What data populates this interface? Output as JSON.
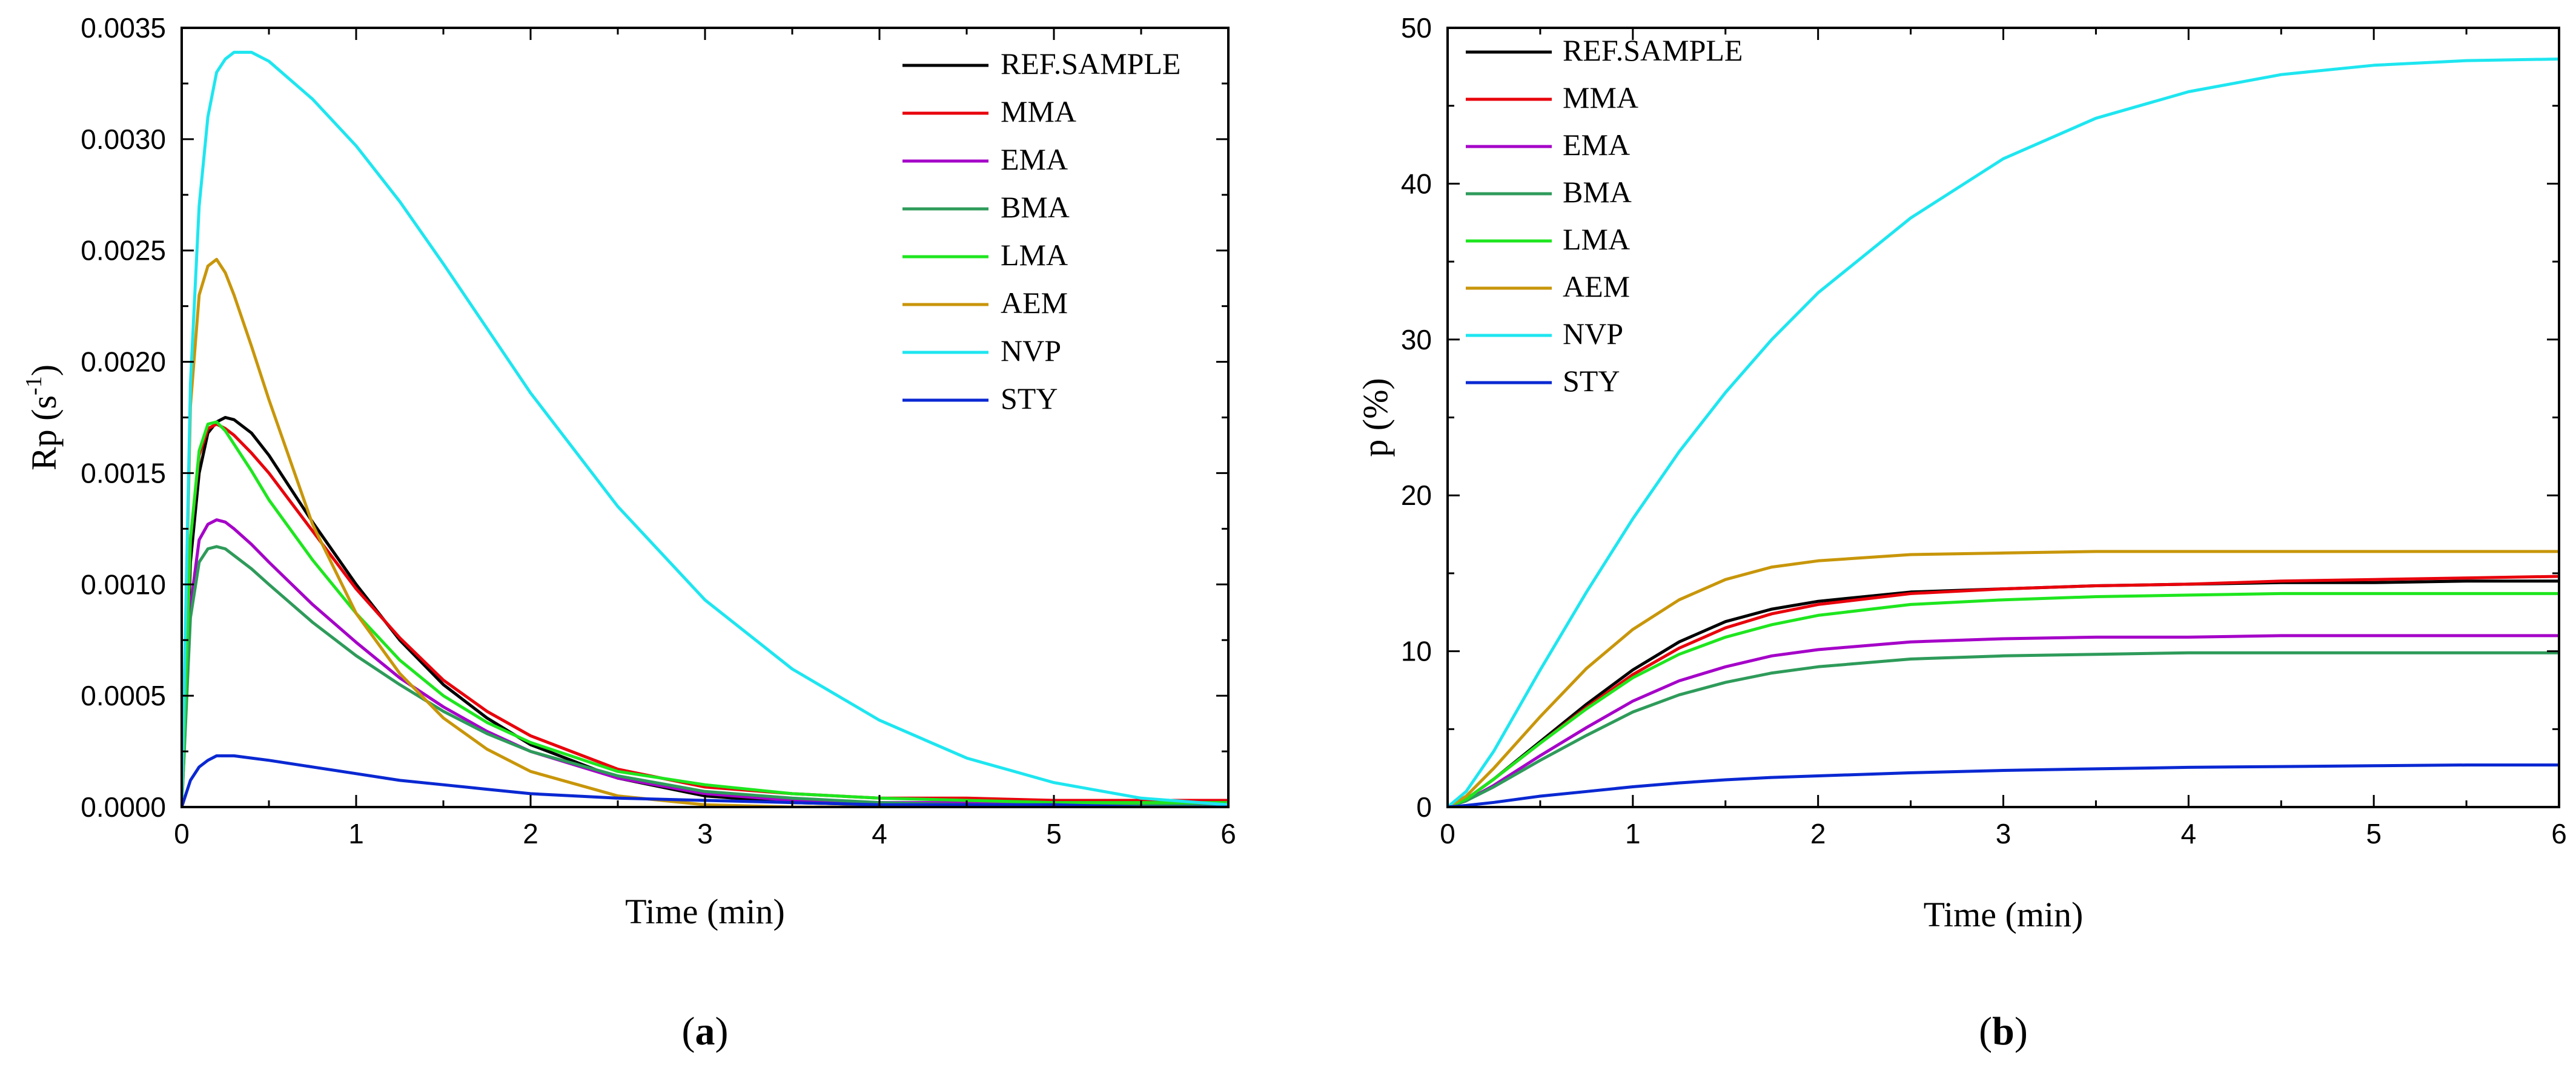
{
  "chart_data": [
    {
      "type": "line",
      "panel_label": "a",
      "xlabel": "Time (min)",
      "ylabel": {
        "base": "Rp (s",
        "sup": "-1",
        "close": ")"
      },
      "xlim": [
        0,
        6
      ],
      "ylim": [
        0,
        0.0035
      ],
      "x_ticks": [
        0,
        1,
        2,
        3,
        4,
        5,
        6
      ],
      "x_tick_labels": [
        "0",
        "1",
        "2",
        "3",
        "4",
        "5",
        "6"
      ],
      "y_ticks": [
        0,
        0.0005,
        0.001,
        0.0015,
        0.002,
        0.0025,
        0.003,
        0.0035
      ],
      "y_tick_labels": [
        "0.0000",
        "0.0005",
        "0.0010",
        "0.0015",
        "0.0020",
        "0.0025",
        "0.0030",
        "0.0035"
      ],
      "grid": false,
      "legend_position": "top-right",
      "x": [
        0,
        0.05,
        0.1,
        0.15,
        0.2,
        0.25,
        0.3,
        0.4,
        0.5,
        0.75,
        1,
        1.25,
        1.5,
        1.75,
        2,
        2.5,
        3,
        3.5,
        4,
        4.5,
        5,
        5.5,
        6
      ],
      "series": [
        {
          "name": "REF.SAMPLE",
          "color": "#000000",
          "values": [
            0,
            0.0011,
            0.0015,
            0.00168,
            0.00173,
            0.00175,
            0.00174,
            0.00168,
            0.00158,
            0.00128,
            0.001,
            0.00075,
            0.00055,
            0.0004,
            0.00028,
            0.00013,
            5e-05,
            2e-05,
            1e-05,
            1e-05,
            1e-05,
            1e-05,
            1e-05
          ]
        },
        {
          "name": "MMA",
          "color": "#e8000b",
          "values": [
            0,
            0.0012,
            0.00158,
            0.0017,
            0.00172,
            0.0017,
            0.00167,
            0.00159,
            0.0015,
            0.00124,
            0.00098,
            0.00076,
            0.00057,
            0.00043,
            0.00032,
            0.00017,
            9e-05,
            6e-05,
            4e-05,
            4e-05,
            3e-05,
            3e-05,
            3e-05
          ]
        },
        {
          "name": "EMA",
          "color": "#a500c8",
          "values": [
            0,
            0.0009,
            0.0012,
            0.00127,
            0.00129,
            0.00128,
            0.00125,
            0.00118,
            0.0011,
            0.00091,
            0.00074,
            0.00058,
            0.00045,
            0.00034,
            0.00025,
            0.00013,
            6e-05,
            3e-05,
            2e-05,
            2e-05,
            1e-05,
            1e-05,
            1e-05
          ]
        },
        {
          "name": "BMA",
          "color": "#2e9b5a",
          "values": [
            0,
            0.00085,
            0.0011,
            0.00116,
            0.00117,
            0.00116,
            0.00113,
            0.00107,
            0.001,
            0.00083,
            0.00068,
            0.00055,
            0.00043,
            0.00033,
            0.00025,
            0.00014,
            7e-05,
            4e-05,
            2e-05,
            1e-05,
            1e-05,
            1e-05,
            1e-05
          ]
        },
        {
          "name": "LMA",
          "color": "#1ee61e",
          "values": [
            0,
            0.0012,
            0.0016,
            0.00172,
            0.00173,
            0.00169,
            0.00163,
            0.00151,
            0.00138,
            0.00111,
            0.00087,
            0.00066,
            0.0005,
            0.00038,
            0.00029,
            0.00016,
            0.0001,
            6e-05,
            4e-05,
            3e-05,
            2e-05,
            2e-05,
            2e-05
          ]
        },
        {
          "name": "AEM",
          "color": "#c8960a",
          "values": [
            0,
            0.0018,
            0.0023,
            0.00243,
            0.00246,
            0.0024,
            0.0023,
            0.00207,
            0.00183,
            0.00127,
            0.00087,
            0.0006,
            0.0004,
            0.00026,
            0.00016,
            5e-05,
            1e-05,
            0,
            0,
            0,
            0,
            0,
            0
          ]
        },
        {
          "name": "NVP",
          "color": "#1ee6f0",
          "values": [
            0,
            0.0019,
            0.0027,
            0.0031,
            0.0033,
            0.00336,
            0.00339,
            0.00339,
            0.00335,
            0.00318,
            0.00297,
            0.00272,
            0.00244,
            0.00215,
            0.00186,
            0.00135,
            0.00093,
            0.00062,
            0.00039,
            0.00022,
            0.00011,
            4e-05,
            1e-05
          ]
        },
        {
          "name": "STY",
          "color": "#0a28d2",
          "values": [
            0,
            0.00012,
            0.00018,
            0.00021,
            0.00023,
            0.00023,
            0.00023,
            0.00022,
            0.00021,
            0.00018,
            0.00015,
            0.00012,
            0.0001,
            8e-05,
            6e-05,
            4e-05,
            3e-05,
            2e-05,
            1e-05,
            1e-05,
            1e-05,
            0,
            0
          ]
        }
      ]
    },
    {
      "type": "line",
      "panel_label": "b",
      "xlabel": "Time (min)",
      "ylabel": {
        "base": "p (%)",
        "sup": "",
        "close": ""
      },
      "xlim": [
        0,
        6
      ],
      "ylim": [
        0,
        50
      ],
      "x_ticks": [
        0,
        1,
        2,
        3,
        4,
        5,
        6
      ],
      "x_tick_labels": [
        "0",
        "1",
        "2",
        "3",
        "4",
        "5",
        "6"
      ],
      "y_ticks": [
        0,
        10,
        20,
        30,
        40,
        50
      ],
      "y_tick_labels": [
        "0",
        "10",
        "20",
        "30",
        "40",
        "50"
      ],
      "grid": false,
      "legend_position": "top-left",
      "x": [
        0,
        0.1,
        0.25,
        0.5,
        0.75,
        1,
        1.25,
        1.5,
        1.75,
        2,
        2.5,
        3,
        3.5,
        4,
        4.5,
        5,
        5.5,
        6
      ],
      "series": [
        {
          "name": "REF.SAMPLE",
          "color": "#000000",
          "values": [
            0,
            0.5,
            1.8,
            4.2,
            6.6,
            8.8,
            10.6,
            11.9,
            12.7,
            13.2,
            13.8,
            14.0,
            14.2,
            14.3,
            14.4,
            14.4,
            14.5,
            14.5
          ]
        },
        {
          "name": "MMA",
          "color": "#e8000b",
          "values": [
            0,
            0.5,
            1.8,
            4.1,
            6.4,
            8.5,
            10.2,
            11.5,
            12.4,
            13.0,
            13.7,
            14.0,
            14.2,
            14.3,
            14.5,
            14.6,
            14.7,
            14.8
          ]
        },
        {
          "name": "EMA",
          "color": "#a500c8",
          "values": [
            0,
            0.4,
            1.4,
            3.3,
            5.1,
            6.8,
            8.1,
            9.0,
            9.7,
            10.1,
            10.6,
            10.8,
            10.9,
            10.9,
            11.0,
            11.0,
            11.0,
            11.0
          ]
        },
        {
          "name": "BMA",
          "color": "#2e9b5a",
          "values": [
            0,
            0.4,
            1.3,
            3.0,
            4.6,
            6.1,
            7.2,
            8.0,
            8.6,
            9.0,
            9.5,
            9.7,
            9.8,
            9.9,
            9.9,
            9.9,
            9.9,
            9.9
          ]
        },
        {
          "name": "LMA",
          "color": "#1ee61e",
          "values": [
            0,
            0.5,
            1.8,
            4.1,
            6.3,
            8.3,
            9.8,
            10.9,
            11.7,
            12.3,
            13.0,
            13.3,
            13.5,
            13.6,
            13.7,
            13.7,
            13.7,
            13.7
          ]
        },
        {
          "name": "AEM",
          "color": "#c8960a",
          "values": [
            0,
            0.7,
            2.5,
            5.8,
            8.9,
            11.4,
            13.3,
            14.6,
            15.4,
            15.8,
            16.2,
            16.3,
            16.4,
            16.4,
            16.4,
            16.4,
            16.4,
            16.4
          ]
        },
        {
          "name": "NVP",
          "color": "#1ee6f0",
          "values": [
            0,
            1.0,
            3.6,
            8.8,
            13.8,
            18.5,
            22.8,
            26.6,
            30.0,
            33.0,
            37.8,
            41.6,
            44.2,
            45.9,
            47.0,
            47.6,
            47.9,
            48.0
          ]
        },
        {
          "name": "STY",
          "color": "#0a28d2",
          "values": [
            0,
            0.1,
            0.3,
            0.7,
            1.0,
            1.3,
            1.55,
            1.75,
            1.9,
            2.0,
            2.2,
            2.35,
            2.45,
            2.55,
            2.6,
            2.65,
            2.7,
            2.7
          ]
        }
      ]
    }
  ]
}
